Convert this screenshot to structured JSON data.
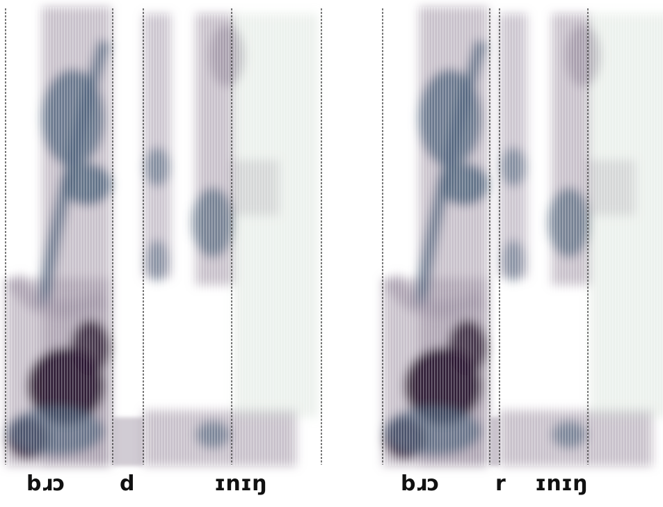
{
  "panels": [
    {
      "id": "left",
      "labels": {
        "first": "bɹɔ",
        "second": "d",
        "third": "ɪnɪŋ"
      }
    },
    {
      "id": "right",
      "labels": {
        "first": "bɹɔ",
        "second": "r",
        "third": "ɪnɪŋ"
      }
    }
  ],
  "colors": {
    "background": "#ffffff",
    "dark": "#2a1630",
    "mid": "#4a5f78",
    "light": "#9a8ea0",
    "faint": "#c9d8cc",
    "boundary": "#222222"
  }
}
